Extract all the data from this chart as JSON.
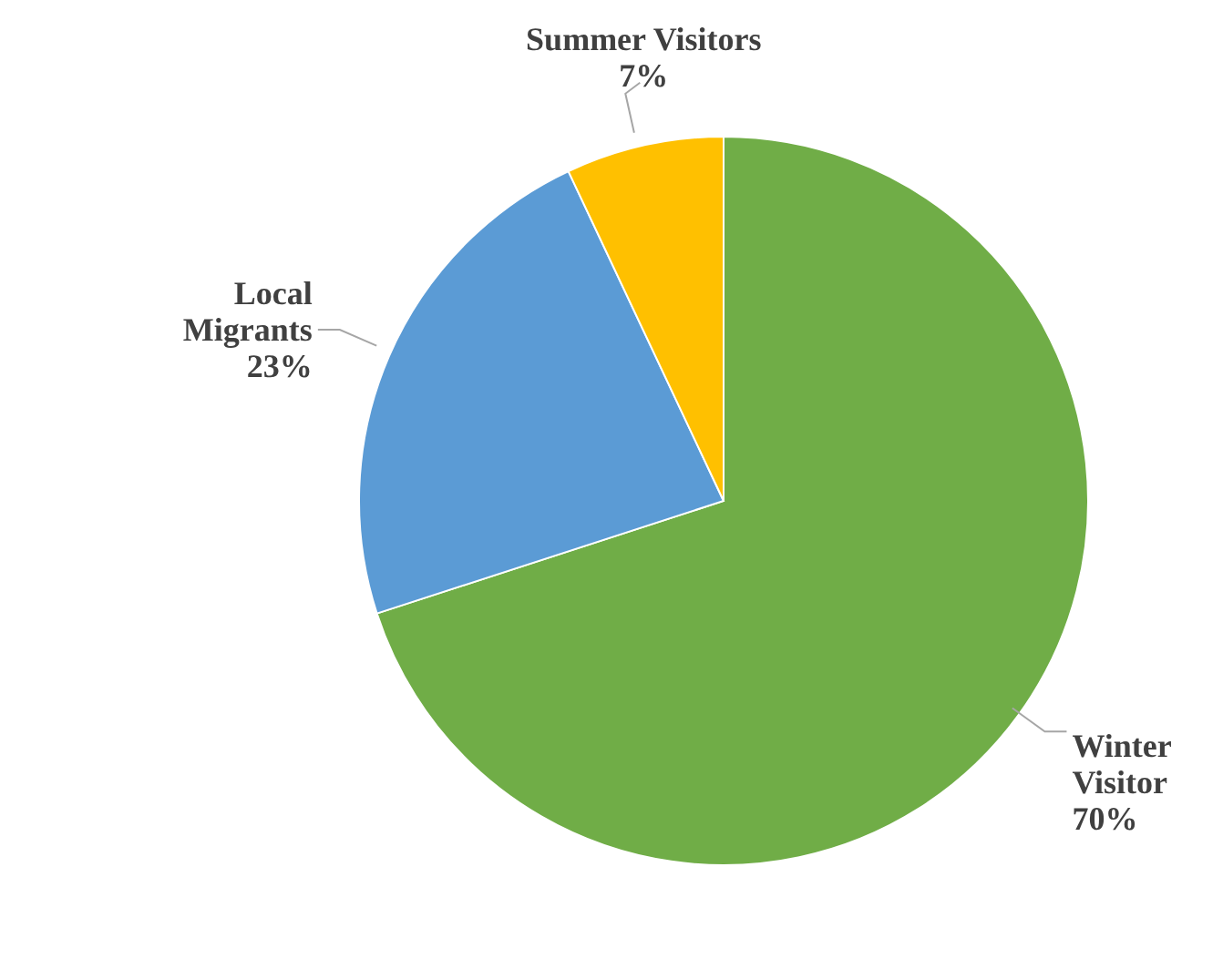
{
  "chart_data": {
    "type": "pie",
    "categories": [
      "Winter Visitor",
      "Local Migrants",
      "Summer Visitors"
    ],
    "values": [
      70,
      23,
      7
    ],
    "value_labels": [
      "70%",
      "23%",
      "7%"
    ],
    "colors": [
      "#70ad47",
      "#5b9bd5",
      "#ffc000"
    ],
    "legend": false
  }
}
